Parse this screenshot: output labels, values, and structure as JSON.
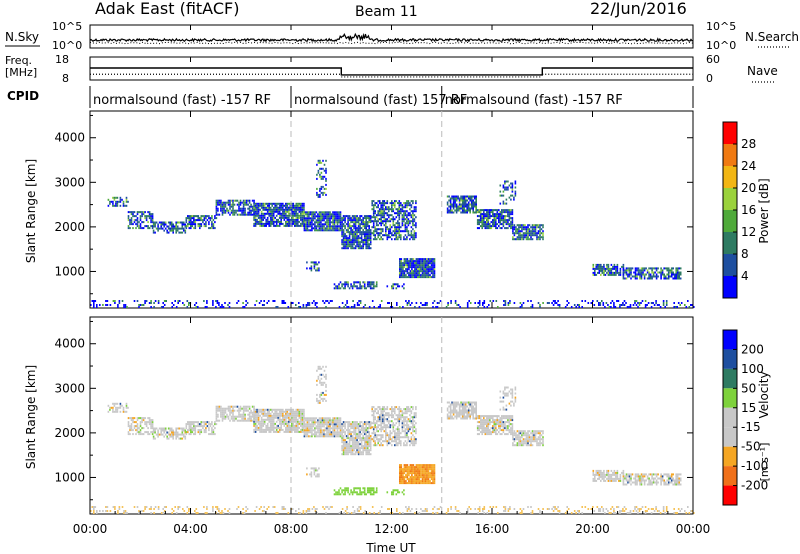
{
  "header": {
    "title": "Adak East (fitACF)",
    "beam": "Beam 11",
    "date": "22/Jun/2016"
  },
  "panel_labels": {
    "nsky": "N.Sky",
    "freq": "Freq.",
    "freq_unit": "[MHz]",
    "cpid": "CPID",
    "nsearch": "N.Search",
    "nave": "Nave"
  },
  "cpid_segments": [
    {
      "label": "normalsound (fast) -157 RF",
      "start": 0.0,
      "end": 8.0
    },
    {
      "label": "normalsound (fast) 157 RF",
      "start": 8.0,
      "end": 14.0
    },
    {
      "label": "normalsound (fast) -157 RF",
      "start": 14.0,
      "end": 24.0
    }
  ],
  "colors": {
    "power_scale": [
      "#0000ff",
      "#1e4fa0",
      "#2e7b62",
      "#4faa3a",
      "#9bd23c",
      "#f2b614",
      "#f07a12",
      "#ff0000"
    ],
    "velocity_scale": [
      "#ff0000",
      "#f0701a",
      "#f5a623",
      "#c8c8c8",
      "#c8c8c8",
      "#7ed23c",
      "#2e7b62",
      "#1e4fa0",
      "#0000ff"
    ],
    "dashed_line": "#bbbbbb"
  },
  "chart_data": [
    {
      "type": "line",
      "name": "noise",
      "y_ticks": [
        "10^5",
        "10^0"
      ],
      "right_ticks": [
        "10^5",
        "10^0"
      ],
      "left_label": "N.Sky",
      "right_label": "N.Search"
    },
    {
      "type": "line",
      "name": "frequency-nave",
      "left_ticks": [
        "18",
        "8"
      ],
      "right_ticks": [
        "60",
        "0"
      ],
      "freq_series_mhz": [
        {
          "start": 0.0,
          "end": 10.0,
          "value": 13.2
        },
        {
          "start": 10.0,
          "end": 18.0,
          "value": 10.2
        },
        {
          "start": 18.0,
          "end": 24.0,
          "value": 13.2
        }
      ],
      "nave_series": [
        {
          "start": 0.0,
          "end": 10.0,
          "value": 15
        },
        {
          "start": 10.0,
          "end": 18.0,
          "value": 8
        },
        {
          "start": 18.0,
          "end": 24.0,
          "value": 15
        }
      ]
    },
    {
      "type": "heatmap",
      "name": "power",
      "ylabel": "Slant Range [km]",
      "y_ticks": [
        "4000",
        "3000",
        "2000",
        "1000"
      ],
      "y_tick_values": [
        4000,
        3000,
        2000,
        1000
      ],
      "ylim": [
        180,
        4600
      ],
      "xlim": [
        0,
        24
      ],
      "colorbar_label": "Power [dB]",
      "colorbar_ticks": [
        "28",
        "24",
        "20",
        "16",
        "12",
        "8",
        "4"
      ],
      "colorbar_tick_values": [
        28,
        24,
        20,
        16,
        12,
        8,
        4
      ],
      "colorbar_range": [
        0,
        32
      ]
    },
    {
      "type": "heatmap",
      "name": "velocity",
      "ylabel": "Slant Range [km]",
      "y_ticks": [
        "4000",
        "3000",
        "2000",
        "1000"
      ],
      "y_tick_values": [
        4000,
        3000,
        2000,
        1000
      ],
      "ylim": [
        180,
        4600
      ],
      "xlim": [
        0,
        24
      ],
      "xlabel": "Time UT",
      "x_ticks": [
        "00:00",
        "04:00",
        "08:00",
        "12:00",
        "16:00",
        "20:00",
        "00:00"
      ],
      "x_tick_values": [
        0,
        4,
        8,
        12,
        16,
        20,
        24
      ],
      "colorbar_label": "Velocity",
      "colorbar_unit": "[m s⁻¹]",
      "colorbar_ticks": [
        "200",
        "100",
        "50",
        "15",
        "-15",
        "-50",
        "-100",
        "-200"
      ]
    }
  ],
  "scatter_regions": [
    {
      "t0": 0.7,
      "t1": 1.5,
      "r0": 2450,
      "r1": 2650,
      "dens": 0.5
    },
    {
      "t0": 1.5,
      "t1": 2.5,
      "r0": 1950,
      "r1": 2350,
      "dens": 0.6
    },
    {
      "t0": 2.5,
      "t1": 3.8,
      "r0": 1850,
      "r1": 2100,
      "dens": 0.7
    },
    {
      "t0": 3.8,
      "t1": 5.0,
      "r0": 1950,
      "r1": 2250,
      "dens": 0.7
    },
    {
      "t0": 5.0,
      "t1": 6.5,
      "r0": 2250,
      "r1": 2600,
      "dens": 0.7
    },
    {
      "t0": 6.5,
      "t1": 8.5,
      "r0": 2000,
      "r1": 2500,
      "dens": 0.85
    },
    {
      "t0": 8.5,
      "t1": 10.0,
      "r0": 1900,
      "r1": 2350,
      "dens": 0.9
    },
    {
      "t0": 10.0,
      "t1": 11.2,
      "r0": 1500,
      "r1": 2250,
      "dens": 0.85
    },
    {
      "t0": 11.2,
      "t1": 13.0,
      "r0": 1700,
      "r1": 2600,
      "dens": 0.6
    },
    {
      "t0": 9.0,
      "t1": 9.4,
      "r0": 2650,
      "r1": 3500,
      "dens": 0.35
    },
    {
      "t0": 8.6,
      "t1": 9.1,
      "r0": 1000,
      "r1": 1200,
      "dens": 0.4
    },
    {
      "t0": 9.7,
      "t1": 11.4,
      "r0": 600,
      "r1": 780,
      "dens": 0.65
    },
    {
      "t0": 11.8,
      "t1": 12.5,
      "r0": 600,
      "r1": 700,
      "dens": 0.5
    },
    {
      "t0": 12.3,
      "t1": 13.7,
      "r0": 850,
      "r1": 1300,
      "dens": 0.9
    },
    {
      "t0": 14.2,
      "t1": 15.4,
      "r0": 2300,
      "r1": 2700,
      "dens": 0.8
    },
    {
      "t0": 15.4,
      "t1": 16.8,
      "r0": 1950,
      "r1": 2400,
      "dens": 0.75
    },
    {
      "t0": 16.8,
      "t1": 18.0,
      "r0": 1700,
      "r1": 2050,
      "dens": 0.8
    },
    {
      "t0": 16.3,
      "t1": 16.9,
      "r0": 2500,
      "r1": 3000,
      "dens": 0.3
    },
    {
      "t0": 20.0,
      "t1": 21.2,
      "r0": 900,
      "r1": 1150,
      "dens": 0.7
    },
    {
      "t0": 21.2,
      "t1": 23.5,
      "r0": 820,
      "r1": 1050,
      "dens": 0.7
    },
    {
      "t0": 0.0,
      "t1": 24.0,
      "r0": 180,
      "r1": 330,
      "dens": 0.22
    }
  ]
}
